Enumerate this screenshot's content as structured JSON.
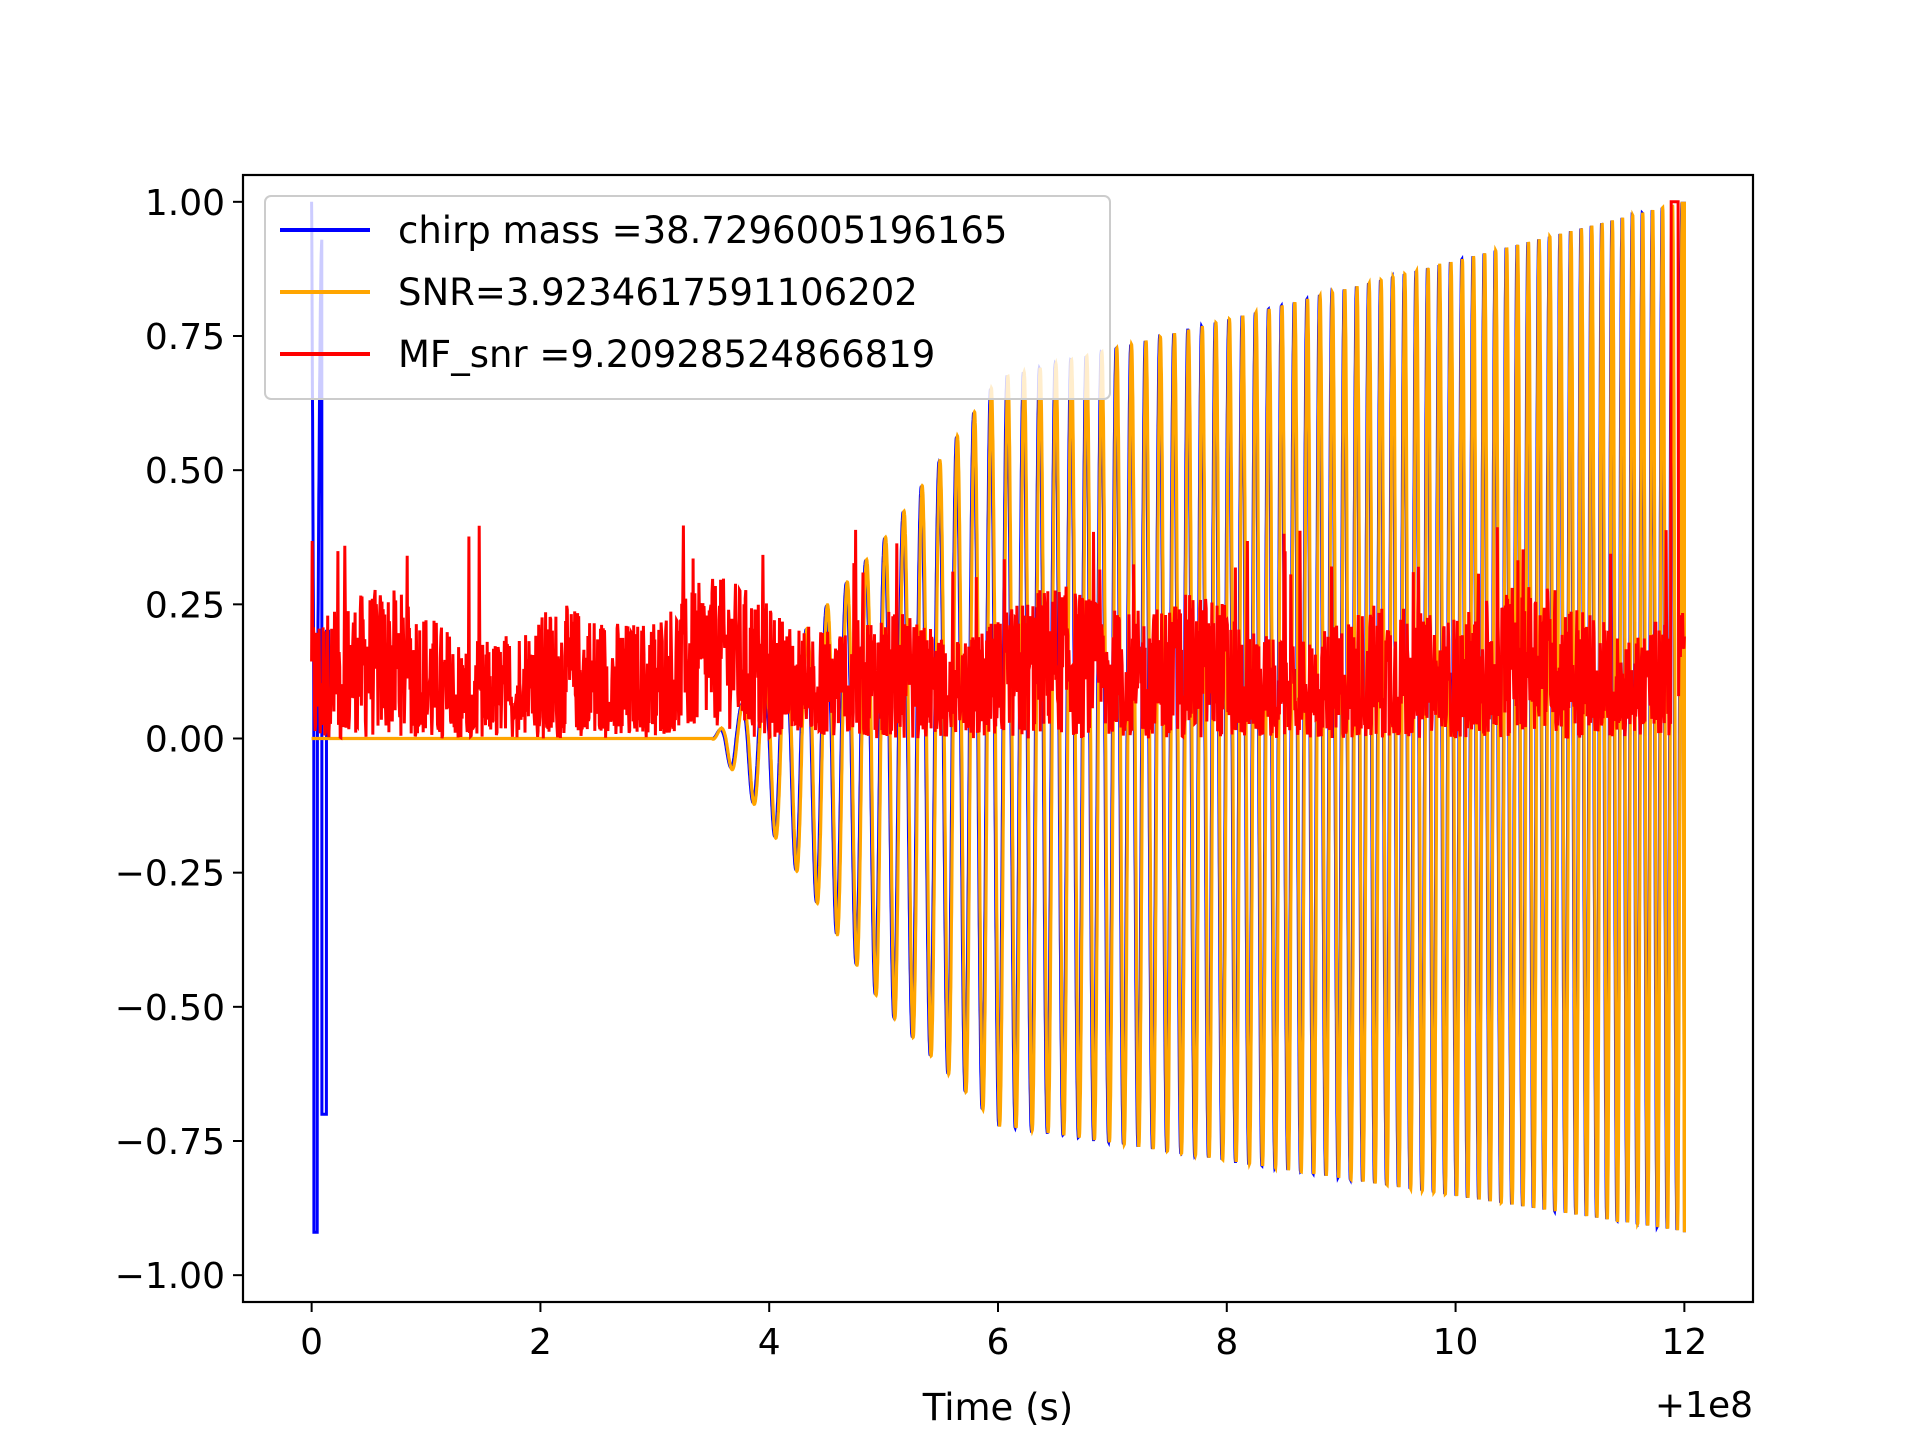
{
  "chart_data": {
    "type": "line",
    "xlabel": "Time (s)",
    "ylabel": "",
    "x_offset_label": "+1e8",
    "xlim": [
      -0.6,
      12.6
    ],
    "ylim": [
      -1.05,
      1.05
    ],
    "xticks": [
      0,
      2,
      4,
      6,
      8,
      10,
      12
    ],
    "xtick_labels": [
      "0",
      "2",
      "4",
      "6",
      "8",
      "10",
      "12"
    ],
    "yticks": [
      1.0,
      0.75,
      0.5,
      0.25,
      0.0,
      -0.25,
      -0.5,
      -0.75,
      -1.0
    ],
    "ytick_labels": [
      "1.00",
      "0.75",
      "0.50",
      "0.25",
      "0.00",
      "−0.25",
      "−0.50",
      "−0.75",
      "−1.00"
    ],
    "grid": false,
    "legend_placement": "upper-left",
    "series": [
      {
        "name": "chirp mass =38.7296005196165",
        "color": "#0000ff",
        "x_range": [
          0,
          12
        ],
        "description_points": [
          [
            0.0,
            1.0
          ],
          [
            0.05,
            -0.92
          ],
          [
            0.1,
            0.93
          ],
          [
            0.12,
            -0.7
          ],
          [
            3.5,
            0.0
          ],
          [
            4.0,
            -0.1
          ],
          [
            5.0,
            0.36
          ],
          [
            5.0,
            -0.5
          ],
          [
            6.0,
            0.67
          ],
          [
            6.0,
            -0.72
          ],
          [
            7.0,
            0.74
          ],
          [
            8.0,
            0.74
          ],
          [
            10.0,
            0.85
          ],
          [
            12.0,
            1.0
          ],
          [
            12.0,
            -0.92
          ]
        ]
      },
      {
        "name": "SNR=3.9234617591106202",
        "color": "#ffa500",
        "x_range": [
          0,
          12
        ],
        "description_points": [
          [
            0.0,
            0.0
          ],
          [
            3.5,
            0.0
          ],
          [
            4.0,
            -0.1
          ],
          [
            5.0,
            0.37
          ],
          [
            5.0,
            -0.5
          ],
          [
            6.0,
            0.67
          ],
          [
            6.0,
            -0.72
          ],
          [
            7.0,
            0.73
          ],
          [
            8.0,
            0.74
          ],
          [
            10.0,
            0.85
          ],
          [
            11.9,
            1.0
          ],
          [
            12.0,
            -0.92
          ]
        ]
      },
      {
        "name": "MF_snr =9.20928524866819",
        "color": "#ff0000",
        "x_range": [
          0,
          12
        ],
        "description_points": [
          [
            0.0,
            0.05
          ],
          [
            0.75,
            0.38
          ],
          [
            1.8,
            0.39
          ],
          [
            3.0,
            0.05
          ],
          [
            4.1,
            0.37
          ],
          [
            6.9,
            0.43
          ],
          [
            9.6,
            0.42
          ],
          [
            11.9,
            1.0
          ],
          [
            12.0,
            0.05
          ]
        ]
      }
    ]
  }
}
